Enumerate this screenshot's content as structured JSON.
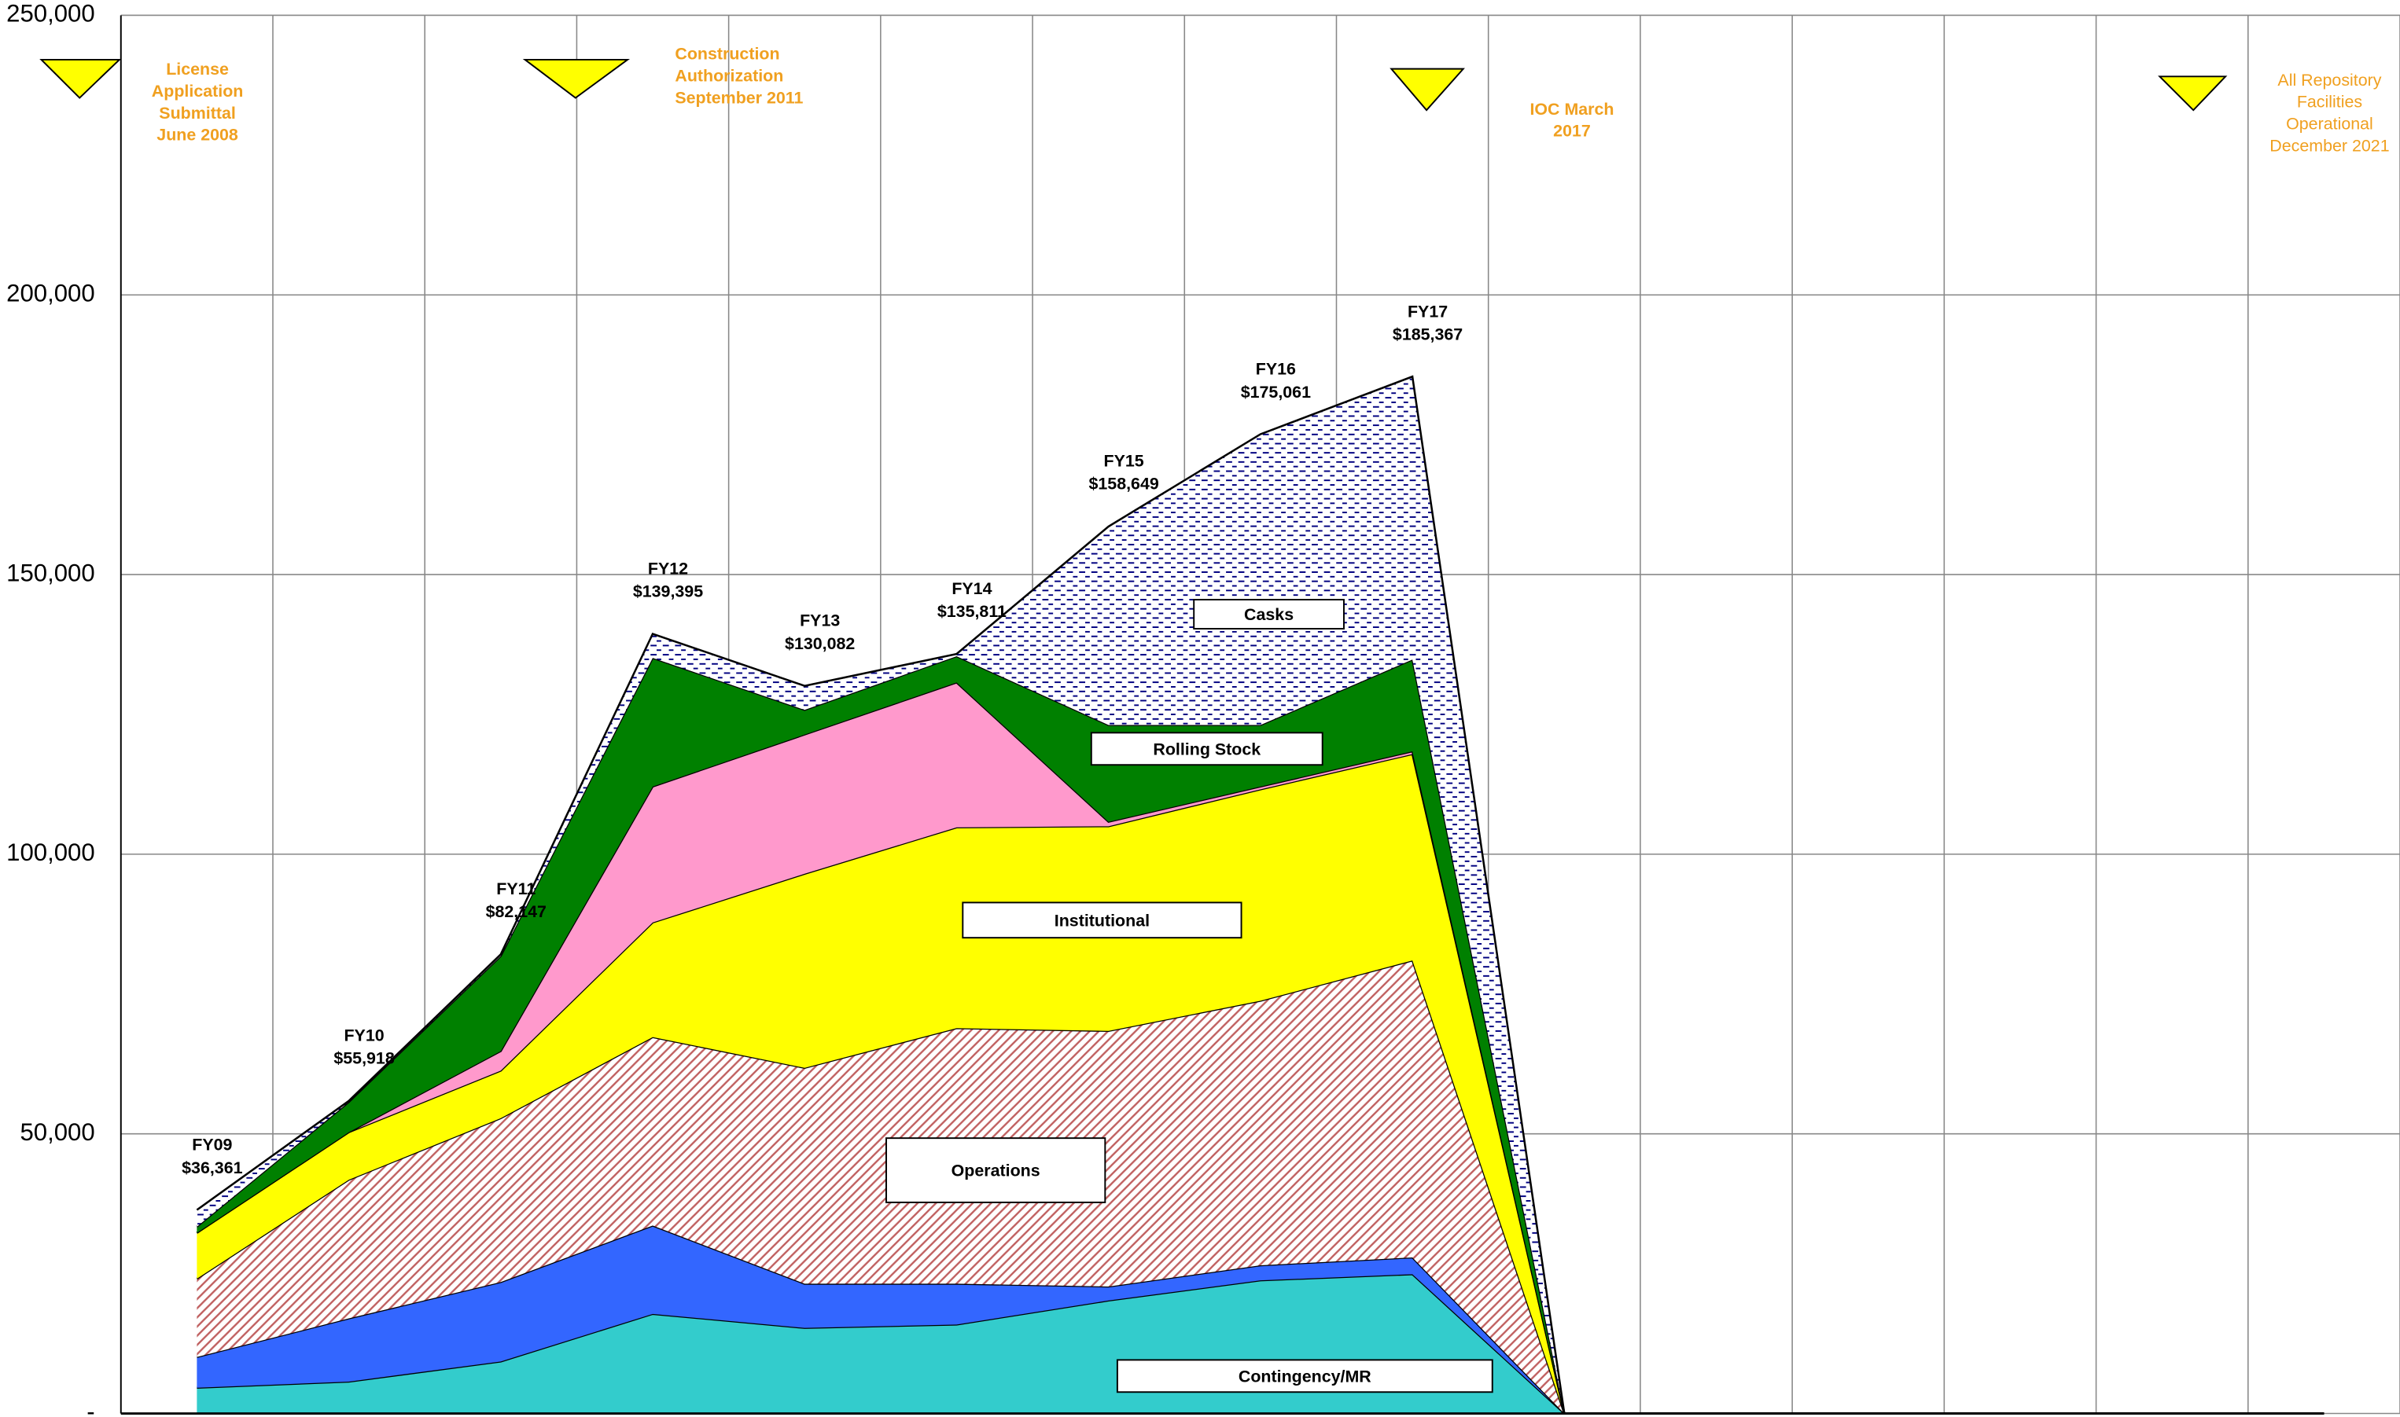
{
  "chart_data": {
    "type": "stacked_area",
    "categories": [
      null,
      null,
      null,
      null,
      null,
      null,
      null,
      null,
      null,
      null,
      null,
      null,
      null,
      null,
      null
    ],
    "series": [
      {
        "name": "Contingency/MR",
        "color": "#33cccc",
        "values": [
          4600,
          5700,
          9300,
          17800,
          15300,
          15900,
          20200,
          23800,
          24900,
          0,
          0,
          0,
          0,
          0,
          0
        ]
      },
      {
        "color": "#3366ff",
        "values": [
          5500,
          11300,
          14200,
          15800,
          7900,
          7300,
          2500,
          2700,
          3000,
          0,
          0,
          0,
          0,
          0,
          0
        ]
      },
      {
        "name": "Operations",
        "color": "#c0504d",
        "pattern": "hatch",
        "values": [
          14000,
          24800,
          29300,
          33700,
          38600,
          45700,
          45700,
          47300,
          53100,
          0,
          0,
          0,
          0,
          0,
          0
        ]
      },
      {
        "name": "Institutional",
        "color": "#ffff00",
        "values": [
          8200,
          8500,
          8500,
          20500,
          34700,
          35900,
          36600,
          37800,
          36900,
          0,
          0,
          0,
          0,
          0,
          0
        ]
      },
      {
        "color": "#ff99cc",
        "values": [
          0,
          0,
          3500,
          24300,
          24900,
          25900,
          800,
          500,
          500,
          0,
          0,
          0,
          0,
          0,
          0
        ]
      },
      {
        "name": "Rolling Stock",
        "color": "#008000",
        "values": [
          1100,
          5400,
          17000,
          23000,
          4400,
          4700,
          17300,
          11000,
          16400,
          0,
          0,
          0,
          0,
          0,
          0
        ]
      },
      {
        "name": "Casks",
        "color": "#000080",
        "pattern": "dots",
        "values": [
          3000,
          200,
          300,
          4300,
          4300,
          400,
          35500,
          52000,
          50600,
          0,
          0,
          0,
          0,
          0,
          0
        ]
      }
    ],
    "point_labels": [
      "FY09",
      "FY10",
      "FY11",
      "FY12",
      "FY13",
      "FY14",
      "FY15",
      "FY16",
      "FY17"
    ],
    "totals": [
      36361,
      55918,
      82147,
      139395,
      130082,
      135811,
      158649,
      175061,
      185367
    ],
    "total_labels": [
      "$36,361",
      "$55,918",
      "$82,147",
      "$139,395",
      "$130,082",
      "$135,811",
      "$158,649",
      "$175,061",
      "$185,367"
    ],
    "milestones": [
      {
        "lines": [
          "License",
          "Application",
          "Submittal",
          "June 2008"
        ]
      },
      {
        "lines": [
          "Construction",
          "Authorization",
          "September 2011"
        ]
      },
      {
        "lines": [
          "IOC  March",
          "2017"
        ]
      },
      {
        "lines": [
          "All Repository",
          "Facilities",
          "Operational",
          "December 2021"
        ]
      }
    ],
    "ylim": [
      0,
      250000
    ],
    "yticks": [
      {
        "value": 0,
        "label": "-"
      },
      {
        "value": 50000,
        "label": "50,000"
      },
      {
        "value": 100000,
        "label": "100,000"
      },
      {
        "value": 150000,
        "label": "150,000"
      },
      {
        "value": 200000,
        "label": "200,000"
      },
      {
        "value": 250000,
        "label": "250,000"
      }
    ],
    "grid": true
  }
}
